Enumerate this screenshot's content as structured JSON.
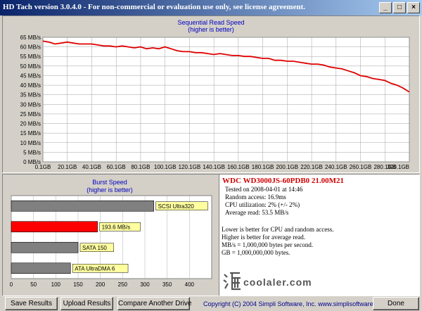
{
  "window": {
    "title": "HD Tach version 3.0.4.0  -  For non-commercial or evaluation use only, see license agreement.",
    "controls": [
      "_",
      "□",
      "×"
    ]
  },
  "sequential": {
    "title": "Sequential Read Speed",
    "subtitle": "(higher is better)"
  },
  "burst": {
    "title": "Burst Speed",
    "subtitle": "(higher is better)"
  },
  "chart_data": [
    {
      "type": "line",
      "title": "Sequential Read Speed",
      "subtitle": "(higher is better)",
      "y_ticks": [
        "0 MB/s",
        "5 MB/s",
        "10 MB/s",
        "15 MB/s",
        "20 MB/s",
        "25 MB/s",
        "30 MB/s",
        "35 MB/s",
        "40 MB/s",
        "45 MB/s",
        "50 MB/s",
        "55 MB/s",
        "60 MB/s",
        "65 MB/s"
      ],
      "x_ticks": [
        "0.1GB",
        "20.1GB",
        "40.1GB",
        "60.1GB",
        "80.1GB",
        "100.1GB",
        "120.1GB",
        "140.1GB",
        "160.1GB",
        "180.1GB",
        "200.1GB",
        "220.1GB",
        "240.1GB",
        "260.1GB",
        "280.1GB",
        "300.1GB"
      ],
      "ylim": [
        0,
        65
      ],
      "xlim": [
        0.1,
        300.1
      ],
      "grid": true,
      "line_color": "#e00000",
      "series": [
        {
          "x": [
            0.1,
            5,
            10,
            15,
            20,
            25,
            30,
            35,
            40,
            45,
            50,
            55,
            60,
            65,
            70,
            75,
            80,
            85,
            90,
            95,
            100,
            105,
            110,
            115,
            120,
            125,
            130,
            135,
            140,
            145,
            150,
            155,
            160,
            165,
            170,
            175,
            180,
            185,
            190,
            195,
            200,
            205,
            210,
            215,
            220,
            225,
            230,
            235,
            240,
            245,
            250,
            255,
            260,
            265,
            270,
            275,
            280,
            285,
            290,
            295,
            300
          ],
          "y": [
            63,
            62.5,
            61.5,
            62,
            62.5,
            62,
            61.5,
            61.5,
            61.5,
            61,
            60.5,
            60.5,
            60,
            60.5,
            60,
            59.5,
            60,
            59,
            59.5,
            59,
            60,
            59,
            58,
            57.5,
            57.5,
            57,
            57,
            56.5,
            56,
            56.5,
            56,
            55.5,
            55.5,
            55,
            55,
            54.5,
            54,
            54,
            53,
            53,
            52.5,
            52.5,
            52,
            51.5,
            51,
            51,
            50.5,
            49.5,
            49,
            48.5,
            47.5,
            46.5,
            45,
            44.5,
            43.5,
            43,
            42.5,
            41,
            40,
            38.5,
            36.5
          ]
        }
      ]
    },
    {
      "type": "bar",
      "title": "Burst Speed",
      "subtitle": "(higher is better)",
      "orientation": "horizontal",
      "x_ticks": [
        "0",
        "50",
        "100",
        "150",
        "200",
        "250",
        "300",
        "350",
        "400"
      ],
      "xlim": [
        0,
        450
      ],
      "grid": true,
      "bars": [
        {
          "label": "SCSI Ultra320",
          "value": 320,
          "color": "#808080"
        },
        {
          "label": "193.6 MB/s",
          "value": 193.6,
          "color": "#ff0000"
        },
        {
          "label": "SATA 150",
          "value": 150,
          "color": "#808080"
        },
        {
          "label": "ATA UltraDMA 6",
          "value": 133,
          "color": "#808080"
        }
      ]
    }
  ],
  "info": {
    "drive": "WDC  WD3000JS-60PDB0  21.00M21",
    "tested": "Tested on 2008-04-01 at 14:46",
    "random_access": "Random access: 16.9ms",
    "cpu": "CPU utilization: 2% (+/- 2%)",
    "average_read": "Average read: 53.5 MB/s",
    "note1": "Lower is better for CPU and random access.",
    "note2": "Higher is better for average read.",
    "note3": "MB/s = 1,000,000 bytes per second.",
    "note4": "GB = 1,000,000,000 bytes."
  },
  "buttons": {
    "save": "Save Results",
    "upload": "Upload Results",
    "compare": "Compare Another Drive",
    "done": "Done"
  },
  "copyright": "Copyright (C) 2004 Simpli Software, Inc. www.simplisoftware.com",
  "watermark": "coolaler.com"
}
